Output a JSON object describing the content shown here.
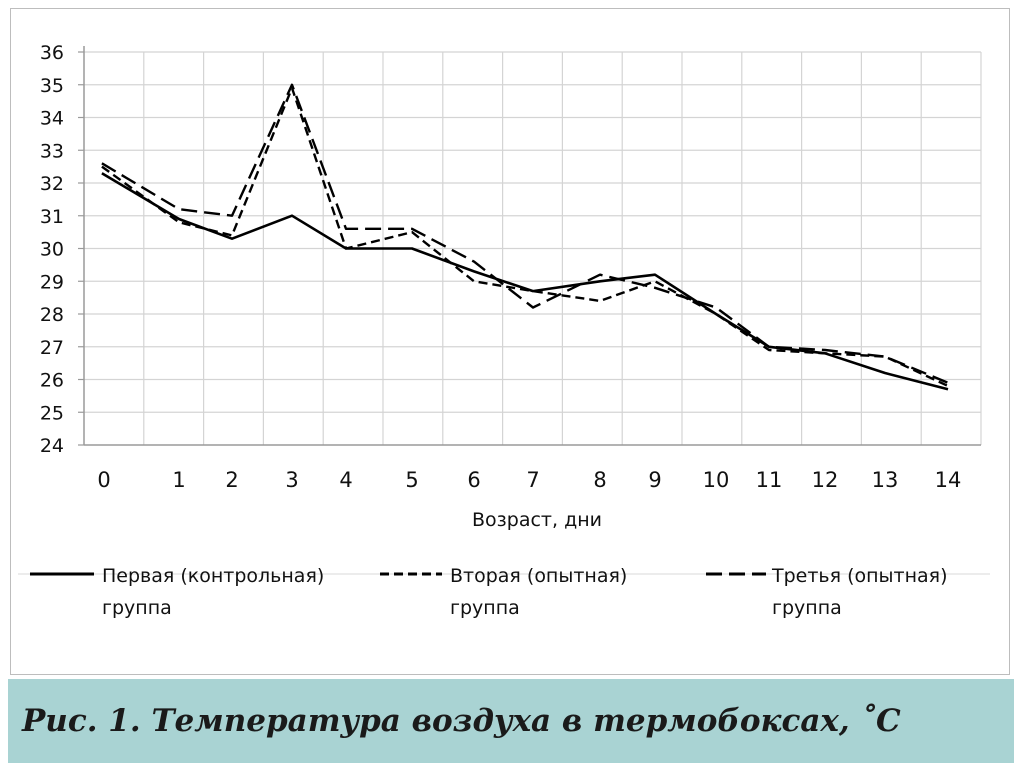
{
  "caption": "Рис. 1. Температура воздуха в термобоксах, ˚С",
  "chart_data": {
    "type": "line",
    "title": "",
    "xlabel": "Возраст, дни",
    "ylabel": "",
    "x": [
      0,
      1,
      2,
      3,
      4,
      5,
      6,
      7,
      8,
      9,
      10,
      11,
      12,
      13,
      14
    ],
    "x_tick_labels": [
      "0",
      "1",
      "2",
      "3",
      "4",
      "5",
      "6",
      "7",
      "8",
      "9",
      "10",
      "11",
      "12",
      "13",
      "14"
    ],
    "y_tick_labels": [
      "24",
      "25",
      "26",
      "27",
      "28",
      "29",
      "30",
      "31",
      "32",
      "33",
      "34",
      "35",
      "36"
    ],
    "ylim": [
      24,
      36
    ],
    "grid": true,
    "legend_position": "bottom",
    "series": [
      {
        "name": "Первая (контрольная) группа",
        "name_lines": [
          "Первая (контрольная)",
          "группа"
        ],
        "style": "solid",
        "color": "#000000",
        "values": [
          32.3,
          30.9,
          30.3,
          31.0,
          30.0,
          30.0,
          29.3,
          28.7,
          29.0,
          29.2,
          28.0,
          27.0,
          26.8,
          26.2,
          25.7
        ]
      },
      {
        "name": "Вторая (опытная) группа",
        "name_lines": [
          "Вторая (опытная)",
          "группа"
        ],
        "style": "short-dash",
        "color": "#000000",
        "values": [
          32.5,
          30.8,
          30.4,
          34.9,
          30.0,
          30.5,
          29.0,
          28.7,
          28.4,
          29.0,
          28.0,
          26.9,
          26.8,
          26.7,
          25.8
        ]
      },
      {
        "name": "Третья (опытная) группа",
        "name_lines": [
          "Третья (опытная)",
          "группа"
        ],
        "style": "long-dash",
        "color": "#000000",
        "values": [
          32.6,
          31.2,
          31.0,
          35.0,
          30.6,
          30.6,
          29.6,
          28.2,
          29.2,
          28.8,
          28.2,
          27.0,
          26.9,
          26.7,
          25.9
        ]
      }
    ]
  }
}
